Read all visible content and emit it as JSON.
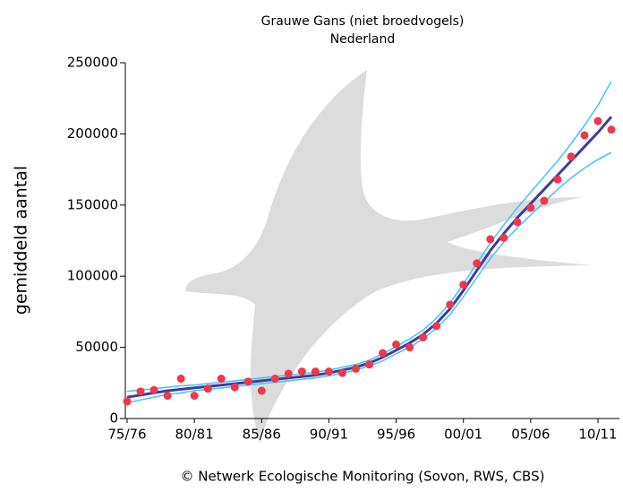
{
  "chart_data": {
    "type": "line",
    "title": "Grauwe Gans (niet broedvogels)",
    "subtitle": "Nederland",
    "y_label": "gemiddeld aantal",
    "footer": "© Netwerk Ecologische Monitoring (Sovon, RWS, CBS)",
    "categories": [
      "75/76",
      null,
      null,
      null,
      null,
      "80/81",
      null,
      null,
      null,
      null,
      "85/86",
      null,
      null,
      null,
      null,
      "90/91",
      null,
      null,
      null,
      null,
      "95/96",
      null,
      null,
      null,
      null,
      "00/01",
      null,
      null,
      null,
      null,
      "05/06",
      null,
      null,
      null,
      null,
      "10/11",
      null
    ],
    "ylim": [
      0,
      250000
    ],
    "yticks": [
      0,
      50000,
      100000,
      150000,
      200000,
      250000
    ],
    "series": [
      {
        "color": "#4fc3f7",
        "style": "line",
        "values": [
          19000,
          20000,
          21000,
          22000,
          23000,
          23500,
          24500,
          25500,
          26500,
          27500,
          28500,
          29500,
          30500,
          31500,
          32500,
          34000,
          36000,
          38000,
          41000,
          45500,
          50500,
          56000,
          62000,
          70500,
          81000,
          94500,
          109000,
          123500,
          136000,
          148000,
          159000,
          170000,
          181000,
          193000,
          206000,
          220000,
          237000
        ]
      },
      {
        "color": "#4fc3f7",
        "style": "line",
        "values": [
          11000,
          13000,
          15000,
          17000,
          18000,
          19500,
          20500,
          21500,
          22500,
          23500,
          24500,
          25500,
          26500,
          27500,
          28500,
          30000,
          32000,
          34000,
          37000,
          40500,
          45500,
          50000,
          56000,
          63500,
          73000,
          85500,
          99000,
          112500,
          124000,
          134000,
          143000,
          152000,
          161000,
          169000,
          176000,
          182000,
          187000
        ]
      },
      {
        "color": "#3d3d9e",
        "style": "line",
        "values": [
          15000,
          16500,
          18000,
          19500,
          20500,
          21500,
          22500,
          23500,
          24500,
          25500,
          26500,
          27500,
          28500,
          29500,
          30500,
          32000,
          34000,
          36000,
          39000,
          43000,
          48000,
          53000,
          59000,
          67000,
          77000,
          90000,
          104000,
          118000,
          130000,
          141000,
          151000,
          161000,
          171000,
          181000,
          191000,
          201000,
          212000
        ]
      },
      {
        "color": "#f0384a",
        "style": "points",
        "values": [
          12000,
          19000,
          20000,
          16000,
          28000,
          16000,
          21000,
          28000,
          22000,
          26000,
          19500,
          28000,
          31500,
          33000,
          33000,
          33000,
          32000,
          35000,
          38000,
          46000,
          52000,
          50000,
          57000,
          65000,
          80000,
          94000,
          109000,
          126000,
          127000,
          138000,
          148000,
          153000,
          168000,
          184000,
          199000,
          209000,
          203000
        ]
      }
    ]
  }
}
